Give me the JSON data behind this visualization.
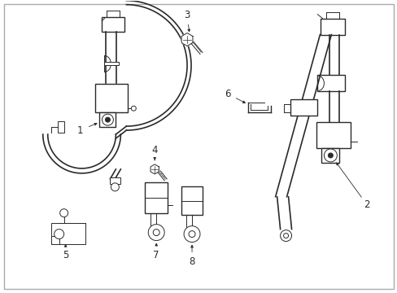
{
  "bg_color": "#ffffff",
  "line_color": "#2a2a2a",
  "border_color": "#bbbbbb",
  "figsize": [
    4.89,
    3.6
  ],
  "dpi": 100
}
